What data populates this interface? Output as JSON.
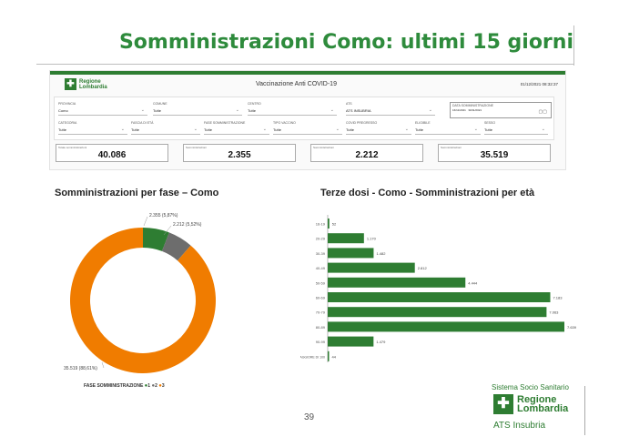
{
  "slide": {
    "title": "Somministrazioni Como: ultimi 15 giorni",
    "page_number": "39"
  },
  "dashboard": {
    "logo_text": [
      "Regione",
      "Lombardia"
    ],
    "title": "Vaccinazione Anti COVID-19",
    "date": "01/12/2021 08:32:37",
    "filters": [
      {
        "label": "Provincia",
        "value": "Como"
      },
      {
        "label": "Comune",
        "value": "Tutte"
      },
      {
        "label": "Centro",
        "value": "Tutte"
      },
      {
        "label": "ATS",
        "value": "ATS INSUBRIA"
      },
      {
        "label": "Categoria",
        "value": "Tutte"
      },
      {
        "label": "Fascia di età",
        "value": "Tutte"
      },
      {
        "label": "Fase somministrazione",
        "value": "Tutte"
      },
      {
        "label": "Tipo vaccino",
        "value": "Tutte"
      },
      {
        "label": "Covid pregresso",
        "value": "Tutte"
      },
      {
        "label": "Eligibile",
        "value": "Tutte"
      },
      {
        "label": "Sesso",
        "value": "Tutte"
      }
    ],
    "date_filter": {
      "label": "Data somministrazione",
      "from": "16/11/2021",
      "to": "30/11/2021"
    },
    "kpis": [
      {
        "label": "Totale somministrazioni",
        "value": "40.086"
      },
      {
        "label": "Somministrazioni",
        "value": "2.355"
      },
      {
        "label": "Somministrazioni",
        "value": "2.212"
      },
      {
        "label": "Somministrazioni",
        "value": "35.519"
      }
    ]
  },
  "charts": {
    "donut_title": "Somministrazioni per fase – Como",
    "bar_title": "Terze dosi - Como - Somministrazioni per età",
    "legend": {
      "label": "FASE SOMMINISTRAZIONE",
      "items": [
        "1",
        "2",
        "3"
      ]
    }
  },
  "colors": {
    "green": "#2e7d32",
    "gray": "#6d6d6d",
    "orange": "#f07c00",
    "bar": "#2e7d32"
  },
  "chart_data": [
    {
      "type": "pie",
      "title": "Somministrazioni per fase – Como",
      "categories": [
        "1",
        "2",
        "3"
      ],
      "values": [
        2355,
        2212,
        35519
      ],
      "labels": [
        "2.355 (5,87%)",
        "2.212 (5,52%)",
        "35.519 (88,61%)"
      ],
      "colors": [
        "#2e7d32",
        "#6d6d6d",
        "#f07c00"
      ]
    },
    {
      "type": "bar",
      "orientation": "horizontal",
      "title": "Terze dosi - Como - Somministrazioni per età",
      "categories": [
        "16-19",
        "20-29",
        "30-39",
        "40-49",
        "50-59",
        "60-69",
        "70-79",
        "80-89",
        "90-99",
        "MAGGIORE DI 100"
      ],
      "values": [
        52,
        1170,
        1482,
        2812,
        4444,
        7183,
        7063,
        7639,
        1479,
        44
      ],
      "labels": [
        "52",
        "1.170",
        "1.482",
        "2.812",
        "4.444",
        "7.183",
        "7.063",
        "7.639",
        "1.479",
        "44"
      ]
    }
  ],
  "footer": {
    "system": "Sistema Socio Sanitario",
    "brand": [
      "Regione",
      "Lombardia"
    ],
    "ats": "ATS Insubria"
  }
}
